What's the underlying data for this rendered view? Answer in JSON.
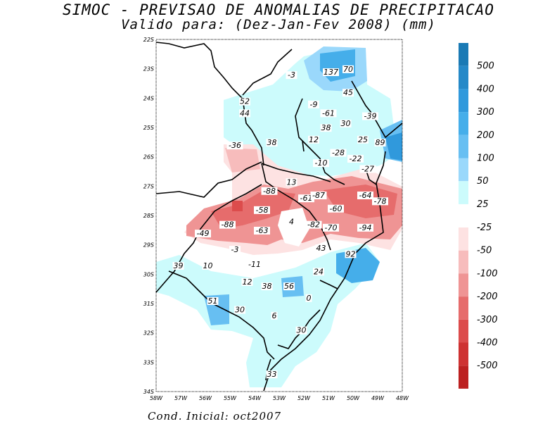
{
  "header": {
    "title": "SIMOC - PREVISAO DE ANOMALIAS DE PRECIPITACAO",
    "subtitle": "Valido para: (Dez-Jan-Fev 2008) (mm)"
  },
  "footer": {
    "text": "Cond. Inicial: oct2007"
  },
  "map": {
    "lon_range": [
      -58,
      -48
    ],
    "lat_range": [
      -34,
      -22
    ],
    "lon_ticks": [
      "58W",
      "57W",
      "56W",
      "55W",
      "54W",
      "53W",
      "52W",
      "51W",
      "50W",
      "49W",
      "48W"
    ],
    "lat_ticks": [
      "22S",
      "23S",
      "24S",
      "25S",
      "26S",
      "27S",
      "28S",
      "29S",
      "30S",
      "31S",
      "32S",
      "33S",
      "34S"
    ],
    "labels": [
      {
        "text": "-3",
        "lon": -52.5,
        "lat": -23.3
      },
      {
        "text": "137",
        "lon": -50.9,
        "lat": -23.2
      },
      {
        "text": "70",
        "lon": -50.2,
        "lat": -23.1
      },
      {
        "text": "45",
        "lon": -50.2,
        "lat": -23.9
      },
      {
        "text": "52",
        "lon": -54.4,
        "lat": -24.2
      },
      {
        "text": "44",
        "lon": -54.4,
        "lat": -24.6
      },
      {
        "text": "-9",
        "lon": -51.6,
        "lat": -24.3
      },
      {
        "text": "-61",
        "lon": -51.0,
        "lat": -24.6
      },
      {
        "text": "-39",
        "lon": -49.3,
        "lat": -24.7
      },
      {
        "text": "38",
        "lon": -51.1,
        "lat": -25.1
      },
      {
        "text": "30",
        "lon": -50.3,
        "lat": -24.95
      },
      {
        "text": "12",
        "lon": -51.6,
        "lat": -25.5
      },
      {
        "text": "25",
        "lon": -49.6,
        "lat": -25.5
      },
      {
        "text": "89",
        "lon": -48.9,
        "lat": -25.6
      },
      {
        "text": "-36",
        "lon": -54.8,
        "lat": -25.7
      },
      {
        "text": "38",
        "lon": -53.3,
        "lat": -25.6
      },
      {
        "text": "-28",
        "lon": -50.6,
        "lat": -25.95
      },
      {
        "text": "-22",
        "lon": -49.9,
        "lat": -26.15
      },
      {
        "text": "-10",
        "lon": -51.3,
        "lat": -26.3
      },
      {
        "text": "-27",
        "lon": -49.4,
        "lat": -26.5
      },
      {
        "text": "13",
        "lon": -52.5,
        "lat": -26.95
      },
      {
        "text": "-88",
        "lon": -53.4,
        "lat": -27.25
      },
      {
        "text": "-61",
        "lon": -51.9,
        "lat": -27.5
      },
      {
        "text": "-87",
        "lon": -51.4,
        "lat": -27.4
      },
      {
        "text": "-64",
        "lon": -49.5,
        "lat": -27.4
      },
      {
        "text": "-78",
        "lon": -48.9,
        "lat": -27.6
      },
      {
        "text": "-60",
        "lon": -50.7,
        "lat": -27.85
      },
      {
        "text": "-58",
        "lon": -53.7,
        "lat": -27.9
      },
      {
        "text": "-88",
        "lon": -55.1,
        "lat": -28.4
      },
      {
        "text": "4",
        "lon": -52.5,
        "lat": -28.3
      },
      {
        "text": "-82",
        "lon": -51.6,
        "lat": -28.4
      },
      {
        "text": "-70",
        "lon": -50.9,
        "lat": -28.5
      },
      {
        "text": "-94",
        "lon": -49.5,
        "lat": -28.5
      },
      {
        "text": "-63",
        "lon": -53.7,
        "lat": -28.6
      },
      {
        "text": "-49",
        "lon": -56.1,
        "lat": -28.7
      },
      {
        "text": "-3",
        "lon": -54.8,
        "lat": -29.25
      },
      {
        "text": "43",
        "lon": -51.3,
        "lat": -29.2
      },
      {
        "text": "92",
        "lon": -50.1,
        "lat": -29.4
      },
      {
        "text": "-11",
        "lon": -54.0,
        "lat": -29.75
      },
      {
        "text": "39",
        "lon": -57.1,
        "lat": -29.8
      },
      {
        "text": "10",
        "lon": -55.9,
        "lat": -29.8
      },
      {
        "text": "24",
        "lon": -51.4,
        "lat": -30.0
      },
      {
        "text": "12",
        "lon": -54.3,
        "lat": -30.35
      },
      {
        "text": "38",
        "lon": -53.5,
        "lat": -30.5
      },
      {
        "text": "56",
        "lon": -52.6,
        "lat": -30.5
      },
      {
        "text": "51",
        "lon": -55.7,
        "lat": -31.0
      },
      {
        "text": "0",
        "lon": -51.8,
        "lat": -30.9
      },
      {
        "text": "30",
        "lon": -54.6,
        "lat": -31.3
      },
      {
        "text": "6",
        "lon": -53.2,
        "lat": -31.5
      },
      {
        "text": "30",
        "lon": -52.1,
        "lat": -32.0
      },
      {
        "text": "33",
        "lon": -53.3,
        "lat": -33.5
      }
    ]
  },
  "colorbar": {
    "positive": [
      {
        "label": "500",
        "color": "#1a7ab5"
      },
      {
        "label": "400",
        "color": "#2589c8"
      },
      {
        "label": "300",
        "color": "#3099dc"
      },
      {
        "label": "200",
        "color": "#45aeea"
      },
      {
        "label": "100",
        "color": "#67bff2"
      },
      {
        "label": "50",
        "color": "#9ad8fb"
      },
      {
        "label": "25",
        "color": "#ccfbfc"
      }
    ],
    "negative": [
      {
        "label": "-25",
        "color": "#fde2e2"
      },
      {
        "label": "-50",
        "color": "#f7bcbc"
      },
      {
        "label": "-100",
        "color": "#ef9494"
      },
      {
        "label": "-200",
        "color": "#e66c6c"
      },
      {
        "label": "-300",
        "color": "#dc4c4c"
      },
      {
        "label": "-400",
        "color": "#ce3232"
      },
      {
        "label": "-500",
        "color": "#bc2020"
      }
    ]
  }
}
